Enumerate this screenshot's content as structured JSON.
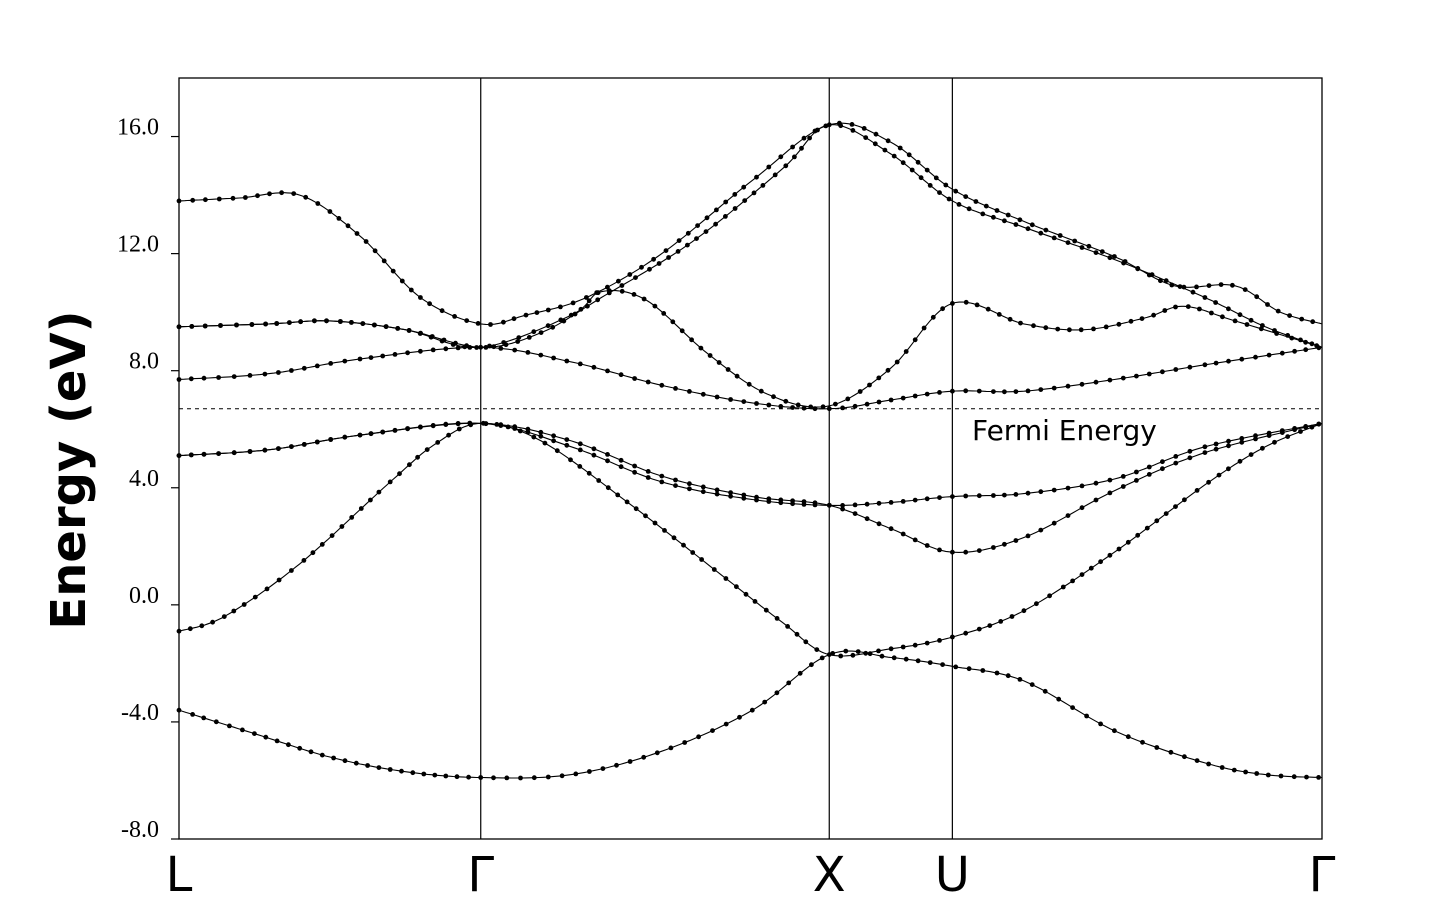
{
  "chart_data": {
    "type": "line",
    "title": "",
    "ylabel": "Energy (eV)",
    "xlabel": "",
    "ylim": [
      -8.0,
      18.0
    ],
    "yticks": [
      -8.0,
      -4.0,
      0.0,
      4.0,
      8.0,
      12.0,
      16.0
    ],
    "ytick_labels": [
      "-8.0",
      "-4.0",
      "0.0",
      "4.0",
      "8.0",
      "12.0",
      "16.0"
    ],
    "k_points": [
      {
        "label": "L",
        "x": 0.0
      },
      {
        "label": "Γ",
        "x": 1.0
      },
      {
        "label": "X",
        "x": 2.155
      },
      {
        "label": "U",
        "x": 2.563
      },
      {
        "label": "Γ",
        "x": 3.788
      }
    ],
    "fermi_energy": 6.7,
    "fermi_label": "Fermi Energy",
    "grid": false,
    "marker": "dot",
    "series": [
      {
        "points": [
          [
            0,
            -3.6
          ],
          [
            0.25,
            -4.4
          ],
          [
            0.5,
            -5.2
          ],
          [
            0.75,
            -5.7
          ],
          [
            1.0,
            -5.9
          ],
          [
            1.3,
            -5.8
          ],
          [
            1.6,
            -5.0
          ],
          [
            1.9,
            -3.6
          ],
          [
            2.155,
            -1.7
          ],
          [
            2.36,
            -1.8
          ],
          [
            2.563,
            -2.1
          ],
          [
            2.8,
            -2.6
          ],
          [
            3.1,
            -4.3
          ],
          [
            3.4,
            -5.4
          ],
          [
            3.6,
            -5.8
          ],
          [
            3.788,
            -5.9
          ]
        ]
      },
      {
        "points": [
          [
            0,
            -0.9
          ],
          [
            0.15,
            -0.4
          ],
          [
            0.4,
            1.4
          ],
          [
            0.7,
            4.2
          ],
          [
            0.85,
            5.5
          ],
          [
            1.0,
            6.2
          ],
          [
            1.2,
            5.6
          ],
          [
            1.5,
            3.4
          ],
          [
            1.8,
            1.0
          ],
          [
            2.0,
            -0.6
          ],
          [
            2.155,
            -1.7
          ],
          [
            2.36,
            -1.5
          ],
          [
            2.563,
            -1.1
          ],
          [
            2.8,
            -0.2
          ],
          [
            3.1,
            1.8
          ],
          [
            3.4,
            4.1
          ],
          [
            3.6,
            5.4
          ],
          [
            3.788,
            6.2
          ]
        ]
      },
      {
        "points": [
          [
            0,
            5.1
          ],
          [
            0.3,
            5.3
          ],
          [
            0.6,
            5.8
          ],
          [
            1.0,
            6.2
          ],
          [
            1.3,
            5.6
          ],
          [
            1.6,
            4.4
          ],
          [
            1.9,
            3.7
          ],
          [
            2.155,
            3.4
          ],
          [
            2.36,
            2.6
          ],
          [
            2.563,
            1.8
          ],
          [
            2.8,
            2.3
          ],
          [
            3.1,
            3.9
          ],
          [
            3.4,
            5.2
          ],
          [
            3.788,
            6.2
          ]
        ]
      },
      {
        "points": [
          [
            0,
            5.1
          ],
          [
            0.3,
            5.3
          ],
          [
            0.6,
            5.8
          ],
          [
            1.0,
            6.2
          ],
          [
            1.3,
            5.4
          ],
          [
            1.6,
            4.2
          ],
          [
            1.9,
            3.6
          ],
          [
            2.155,
            3.4
          ],
          [
            2.36,
            3.5
          ],
          [
            2.563,
            3.7
          ],
          [
            2.8,
            3.8
          ],
          [
            3.1,
            4.3
          ],
          [
            3.4,
            5.4
          ],
          [
            3.788,
            6.2
          ]
        ]
      },
      {
        "points": [
          [
            0,
            7.7
          ],
          [
            0.3,
            7.9
          ],
          [
            0.6,
            8.4
          ],
          [
            1.0,
            8.8
          ],
          [
            1.3,
            8.3
          ],
          [
            1.6,
            7.5
          ],
          [
            1.9,
            6.9
          ],
          [
            2.155,
            6.7
          ],
          [
            2.36,
            7.0
          ],
          [
            2.563,
            7.3
          ],
          [
            2.8,
            7.3
          ],
          [
            3.1,
            7.7
          ],
          [
            3.4,
            8.2
          ],
          [
            3.788,
            8.8
          ]
        ]
      },
      {
        "points": [
          [
            0,
            9.5
          ],
          [
            0.3,
            9.6
          ],
          [
            0.5,
            9.7
          ],
          [
            0.75,
            9.4
          ],
          [
            1.0,
            8.8
          ],
          [
            1.3,
            9.9
          ],
          [
            1.4,
            10.7
          ],
          [
            1.55,
            10.4
          ],
          [
            1.75,
            8.6
          ],
          [
            1.95,
            7.2
          ],
          [
            2.155,
            6.8
          ],
          [
            2.36,
            8.1
          ],
          [
            2.563,
            10.3
          ],
          [
            2.8,
            9.6
          ],
          [
            3.0,
            9.4
          ],
          [
            3.2,
            9.8
          ],
          [
            3.33,
            10.2
          ],
          [
            3.5,
            9.7
          ],
          [
            3.788,
            8.8
          ]
        ]
      },
      {
        "points": [
          [
            0,
            9.5
          ],
          [
            0.3,
            9.6
          ],
          [
            0.5,
            9.7
          ],
          [
            0.75,
            9.4
          ],
          [
            1.0,
            8.8
          ],
          [
            1.2,
            9.3
          ],
          [
            1.4,
            10.5
          ],
          [
            1.7,
            12.4
          ],
          [
            2.0,
            14.9
          ],
          [
            2.155,
            16.4
          ],
          [
            2.36,
            15.4
          ],
          [
            2.563,
            13.8
          ],
          [
            2.8,
            12.9
          ],
          [
            3.1,
            11.8
          ],
          [
            3.4,
            10.5
          ],
          [
            3.6,
            9.5
          ],
          [
            3.788,
            8.8
          ]
        ]
      },
      {
        "points": [
          [
            0,
            13.8
          ],
          [
            0.2,
            13.9
          ],
          [
            0.4,
            14.0
          ],
          [
            0.6,
            12.6
          ],
          [
            0.8,
            10.5
          ],
          [
            1.0,
            9.6
          ],
          [
            1.15,
            9.9
          ],
          [
            1.35,
            10.5
          ],
          [
            1.6,
            12.0
          ],
          [
            1.9,
            14.5
          ],
          [
            2.155,
            16.4
          ],
          [
            2.36,
            15.8
          ],
          [
            2.563,
            14.2
          ],
          [
            2.8,
            13.1
          ],
          [
            3.1,
            11.9
          ],
          [
            3.3,
            10.9
          ],
          [
            3.5,
            10.9
          ],
          [
            3.65,
            10.0
          ],
          [
            3.788,
            9.6
          ]
        ]
      }
    ]
  }
}
